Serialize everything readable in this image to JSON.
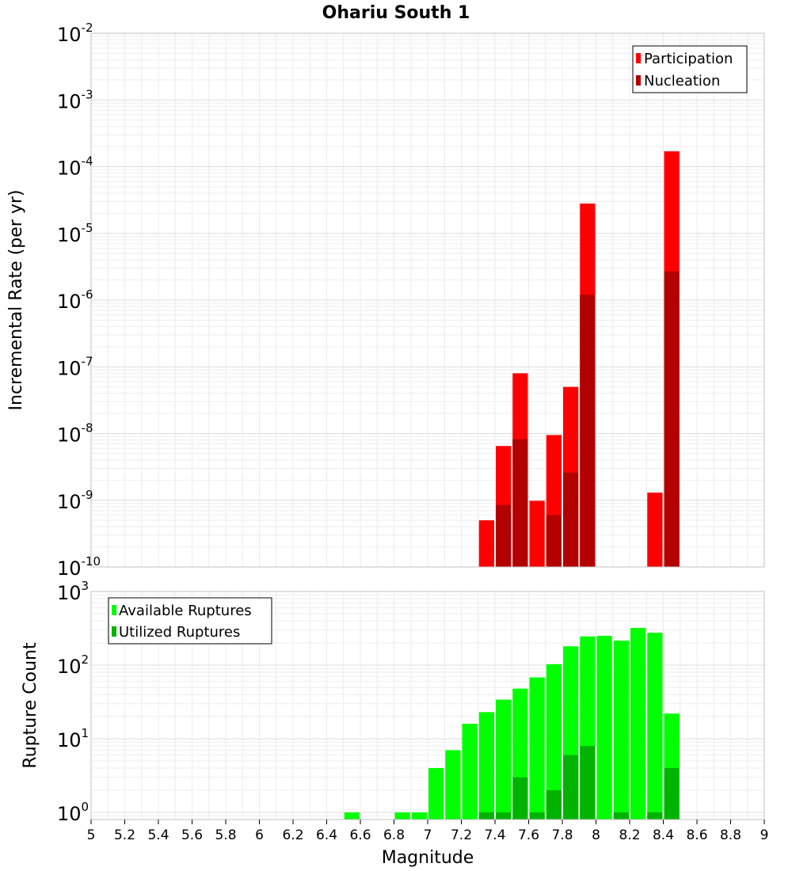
{
  "chart_data": [
    {
      "type": "bar",
      "title": "Ohariu South 1",
      "ylabel": "Incremental Rate (per yr)",
      "xlabel": "",
      "yscale": "log",
      "ylim": [
        1e-10,
        0.01
      ],
      "xlim": [
        5,
        9
      ],
      "bar_width": 0.1,
      "grid": true,
      "legend": "top-right",
      "ytick_labels": [
        {
          "base": "10",
          "exp": "-10"
        },
        {
          "base": "10",
          "exp": "-9"
        },
        {
          "base": "10",
          "exp": "-8"
        },
        {
          "base": "10",
          "exp": "-7"
        },
        {
          "base": "10",
          "exp": "-6"
        },
        {
          "base": "10",
          "exp": "-5"
        },
        {
          "base": "10",
          "exp": "-4"
        },
        {
          "base": "10",
          "exp": "-3"
        },
        {
          "base": "10",
          "exp": "-2"
        }
      ],
      "series": [
        {
          "name": "Participation",
          "color": "#ff0000",
          "x": [
            7.35,
            7.45,
            7.55,
            7.65,
            7.75,
            7.85,
            7.95,
            8.35,
            8.45
          ],
          "values": [
            5e-10,
            6.5e-09,
            8e-08,
            9.8e-10,
            9.5e-09,
            5e-08,
            2.8e-05,
            1.3e-09,
            0.00017
          ]
        },
        {
          "name": "Nucleation",
          "color": "#b30000",
          "x": [
            7.45,
            7.55,
            7.75,
            7.85,
            7.95,
            8.45
          ],
          "values": [
            8.5e-10,
            8.2e-09,
            6e-10,
            2.6e-09,
            1.2e-06,
            2.7e-06
          ]
        }
      ]
    },
    {
      "type": "bar",
      "ylabel": "Rupture Count",
      "xlabel": "Magnitude",
      "yscale": "log",
      "ylim": [
        0.8,
        1000
      ],
      "xlim": [
        5,
        9
      ],
      "bar_width": 0.1,
      "grid": true,
      "legend": "top-left",
      "ytick_labels": [
        {
          "base": "10",
          "exp": "0",
          "value": 1
        },
        {
          "base": "10",
          "exp": "1",
          "value": 10
        },
        {
          "base": "10",
          "exp": "2",
          "value": 100
        },
        {
          "base": "10",
          "exp": "3",
          "value": 1000
        }
      ],
      "xtick_labels": [
        "5",
        "5.2",
        "5.4",
        "5.6",
        "5.8",
        "6",
        "6.2",
        "6.4",
        "6.6",
        "6.8",
        "7",
        "7.2",
        "7.4",
        "7.6",
        "7.8",
        "8",
        "8.2",
        "8.4",
        "8.6",
        "8.8",
        "9"
      ],
      "series": [
        {
          "name": "Available Ruptures",
          "color": "#00ff00",
          "x": [
            6.55,
            6.85,
            6.95,
            7.05,
            7.15,
            7.25,
            7.35,
            7.45,
            7.55,
            7.65,
            7.75,
            7.85,
            7.95,
            8.05,
            8.15,
            8.25,
            8.35,
            8.45
          ],
          "values": [
            1,
            1,
            1,
            4,
            7,
            16,
            23,
            34,
            48,
            68,
            103,
            180,
            245,
            250,
            215,
            320,
            275,
            22
          ]
        },
        {
          "name": "Utilized Ruptures",
          "color": "#00b300",
          "x": [
            7.35,
            7.45,
            7.55,
            7.65,
            7.75,
            7.85,
            7.95,
            8.15,
            8.35,
            8.45
          ],
          "values": [
            1,
            1,
            3,
            1,
            2,
            6,
            8,
            1,
            1,
            4
          ]
        }
      ]
    }
  ]
}
